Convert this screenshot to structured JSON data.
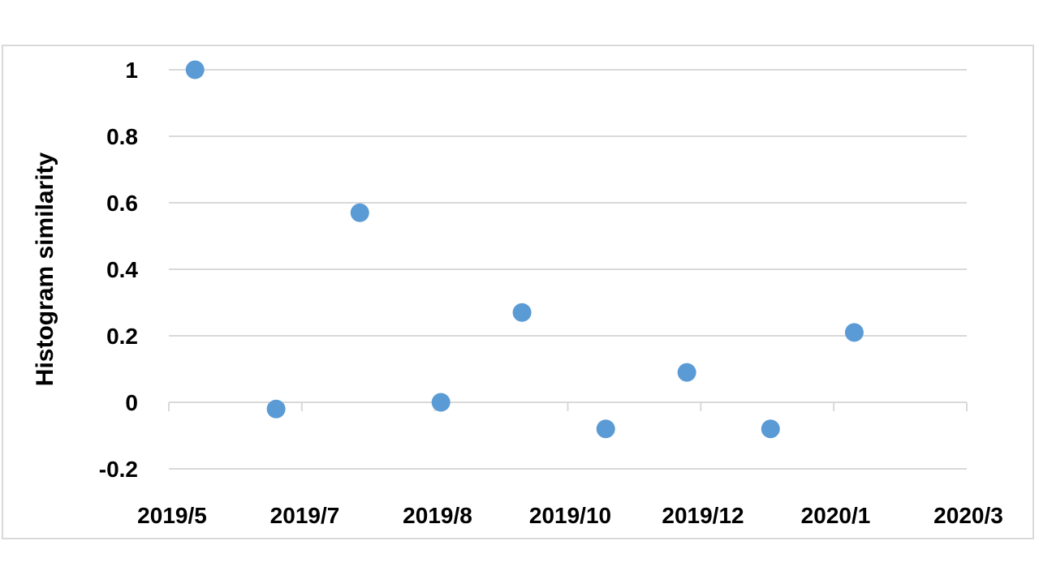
{
  "chart_data": {
    "type": "scatter",
    "title": "",
    "xlabel": "",
    "ylabel": "Histogram similarity",
    "x_tick_labels": [
      "2019/5",
      "2019/7",
      "2019/8",
      "2019/10",
      "2019/12",
      "2020/1",
      "2020/3"
    ],
    "xlim": [
      "2019-05-01",
      "2020-03-01"
    ],
    "ylim": [
      -0.2,
      1
    ],
    "y_ticks": [
      -0.2,
      0,
      0.2,
      0.4,
      0.6,
      0.8,
      1
    ],
    "y_tick_labels": [
      "-0.2",
      "0",
      "0.2",
      "0.4",
      "0.6",
      "0.8",
      "1"
    ],
    "grid": "horizontal",
    "legend": "none",
    "marker_color": "#5b9bd5",
    "points": [
      {
        "x": "2019-05-11",
        "y": 1.0
      },
      {
        "x": "2019-06-11",
        "y": -0.02
      },
      {
        "x": "2019-07-13",
        "y": 0.57
      },
      {
        "x": "2019-08-13",
        "y": 0.0
      },
      {
        "x": "2019-09-13",
        "y": 0.27
      },
      {
        "x": "2019-10-15",
        "y": -0.08
      },
      {
        "x": "2019-11-15",
        "y": 0.09
      },
      {
        "x": "2019-12-17",
        "y": -0.08
      },
      {
        "x": "2020-01-18",
        "y": 0.21
      }
    ]
  }
}
